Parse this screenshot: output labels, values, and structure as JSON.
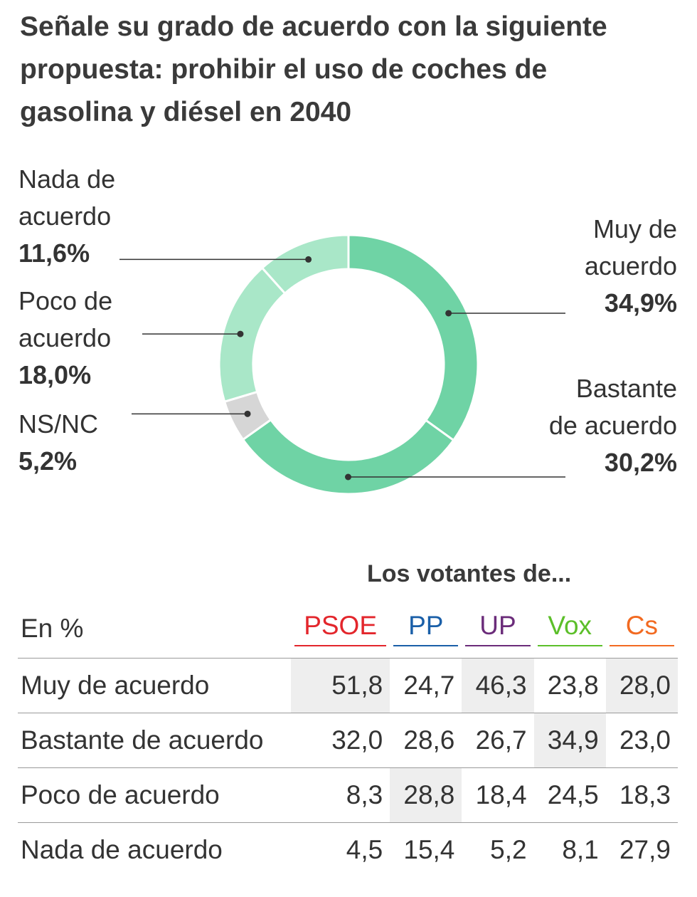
{
  "title": "Señale su grado de acuerdo con la siguiente propuesta: prohibir el uso de coches de gasolina y diésel en 2040",
  "chart_data": [
    {
      "type": "pie",
      "donut": true,
      "slices": [
        {
          "name": "Muy de acuerdo",
          "value": 34.9,
          "display": "34,9%",
          "color": "#6fd3a5"
        },
        {
          "name": "Bastante de acuerdo",
          "value": 30.2,
          "display": "30,2%",
          "color": "#6fd3a5"
        },
        {
          "name": "NS/NC",
          "value": 5.2,
          "display": "5,2%",
          "color": "#d6d6d6"
        },
        {
          "name": "Poco de acuerdo",
          "value": 18.0,
          "display": "18,0%",
          "color": "#a9e7c8"
        },
        {
          "name": "Nada de acuerdo",
          "value": 11.6,
          "display": "11,6%",
          "color": "#a9e7c8"
        }
      ],
      "labels": {
        "muy": {
          "line1": "Muy de",
          "line2": "acuerdo",
          "val": "34,9%"
        },
        "bastante": {
          "line1": "Bastante",
          "line2": "de acuerdo",
          "val": "30,2%"
        },
        "nsnc": {
          "line1": "NS/NC",
          "val": "5,2%"
        },
        "poco": {
          "line1": "Poco de",
          "line2": "acuerdo",
          "val": "18,0%"
        },
        "nada": {
          "line1": "Nada de",
          "line2": "acuerdo",
          "val": "11,6%"
        }
      }
    },
    {
      "type": "table",
      "title": "Los votantes de...",
      "unit_label": "En %",
      "columns": [
        {
          "name": "PSOE",
          "color": "#e3262c"
        },
        {
          "name": "PP",
          "color": "#1a5fa8"
        },
        {
          "name": "UP",
          "color": "#6b2c7a"
        },
        {
          "name": "Vox",
          "color": "#5cbf2a"
        },
        {
          "name": "Cs",
          "color": "#f26a21"
        }
      ],
      "rows": [
        {
          "label": "Muy de acuerdo",
          "values": [
            "51,8",
            "24,7",
            "46,3",
            "23,8",
            "28,0"
          ],
          "highlight": [
            0,
            2,
            4
          ]
        },
        {
          "label": "Bastante de acuerdo",
          "values": [
            "32,0",
            "28,6",
            "26,7",
            "34,9",
            "23,0"
          ],
          "highlight": [
            3
          ]
        },
        {
          "label": "Poco de acuerdo",
          "values": [
            "8,3",
            "28,8",
            "18,4",
            "24,5",
            "18,3"
          ],
          "highlight": [
            1
          ]
        },
        {
          "label": "Nada de acuerdo",
          "values": [
            "4,5",
            "15,4",
            "5,2",
            "8,1",
            "27,9"
          ],
          "highlight": []
        }
      ]
    }
  ]
}
